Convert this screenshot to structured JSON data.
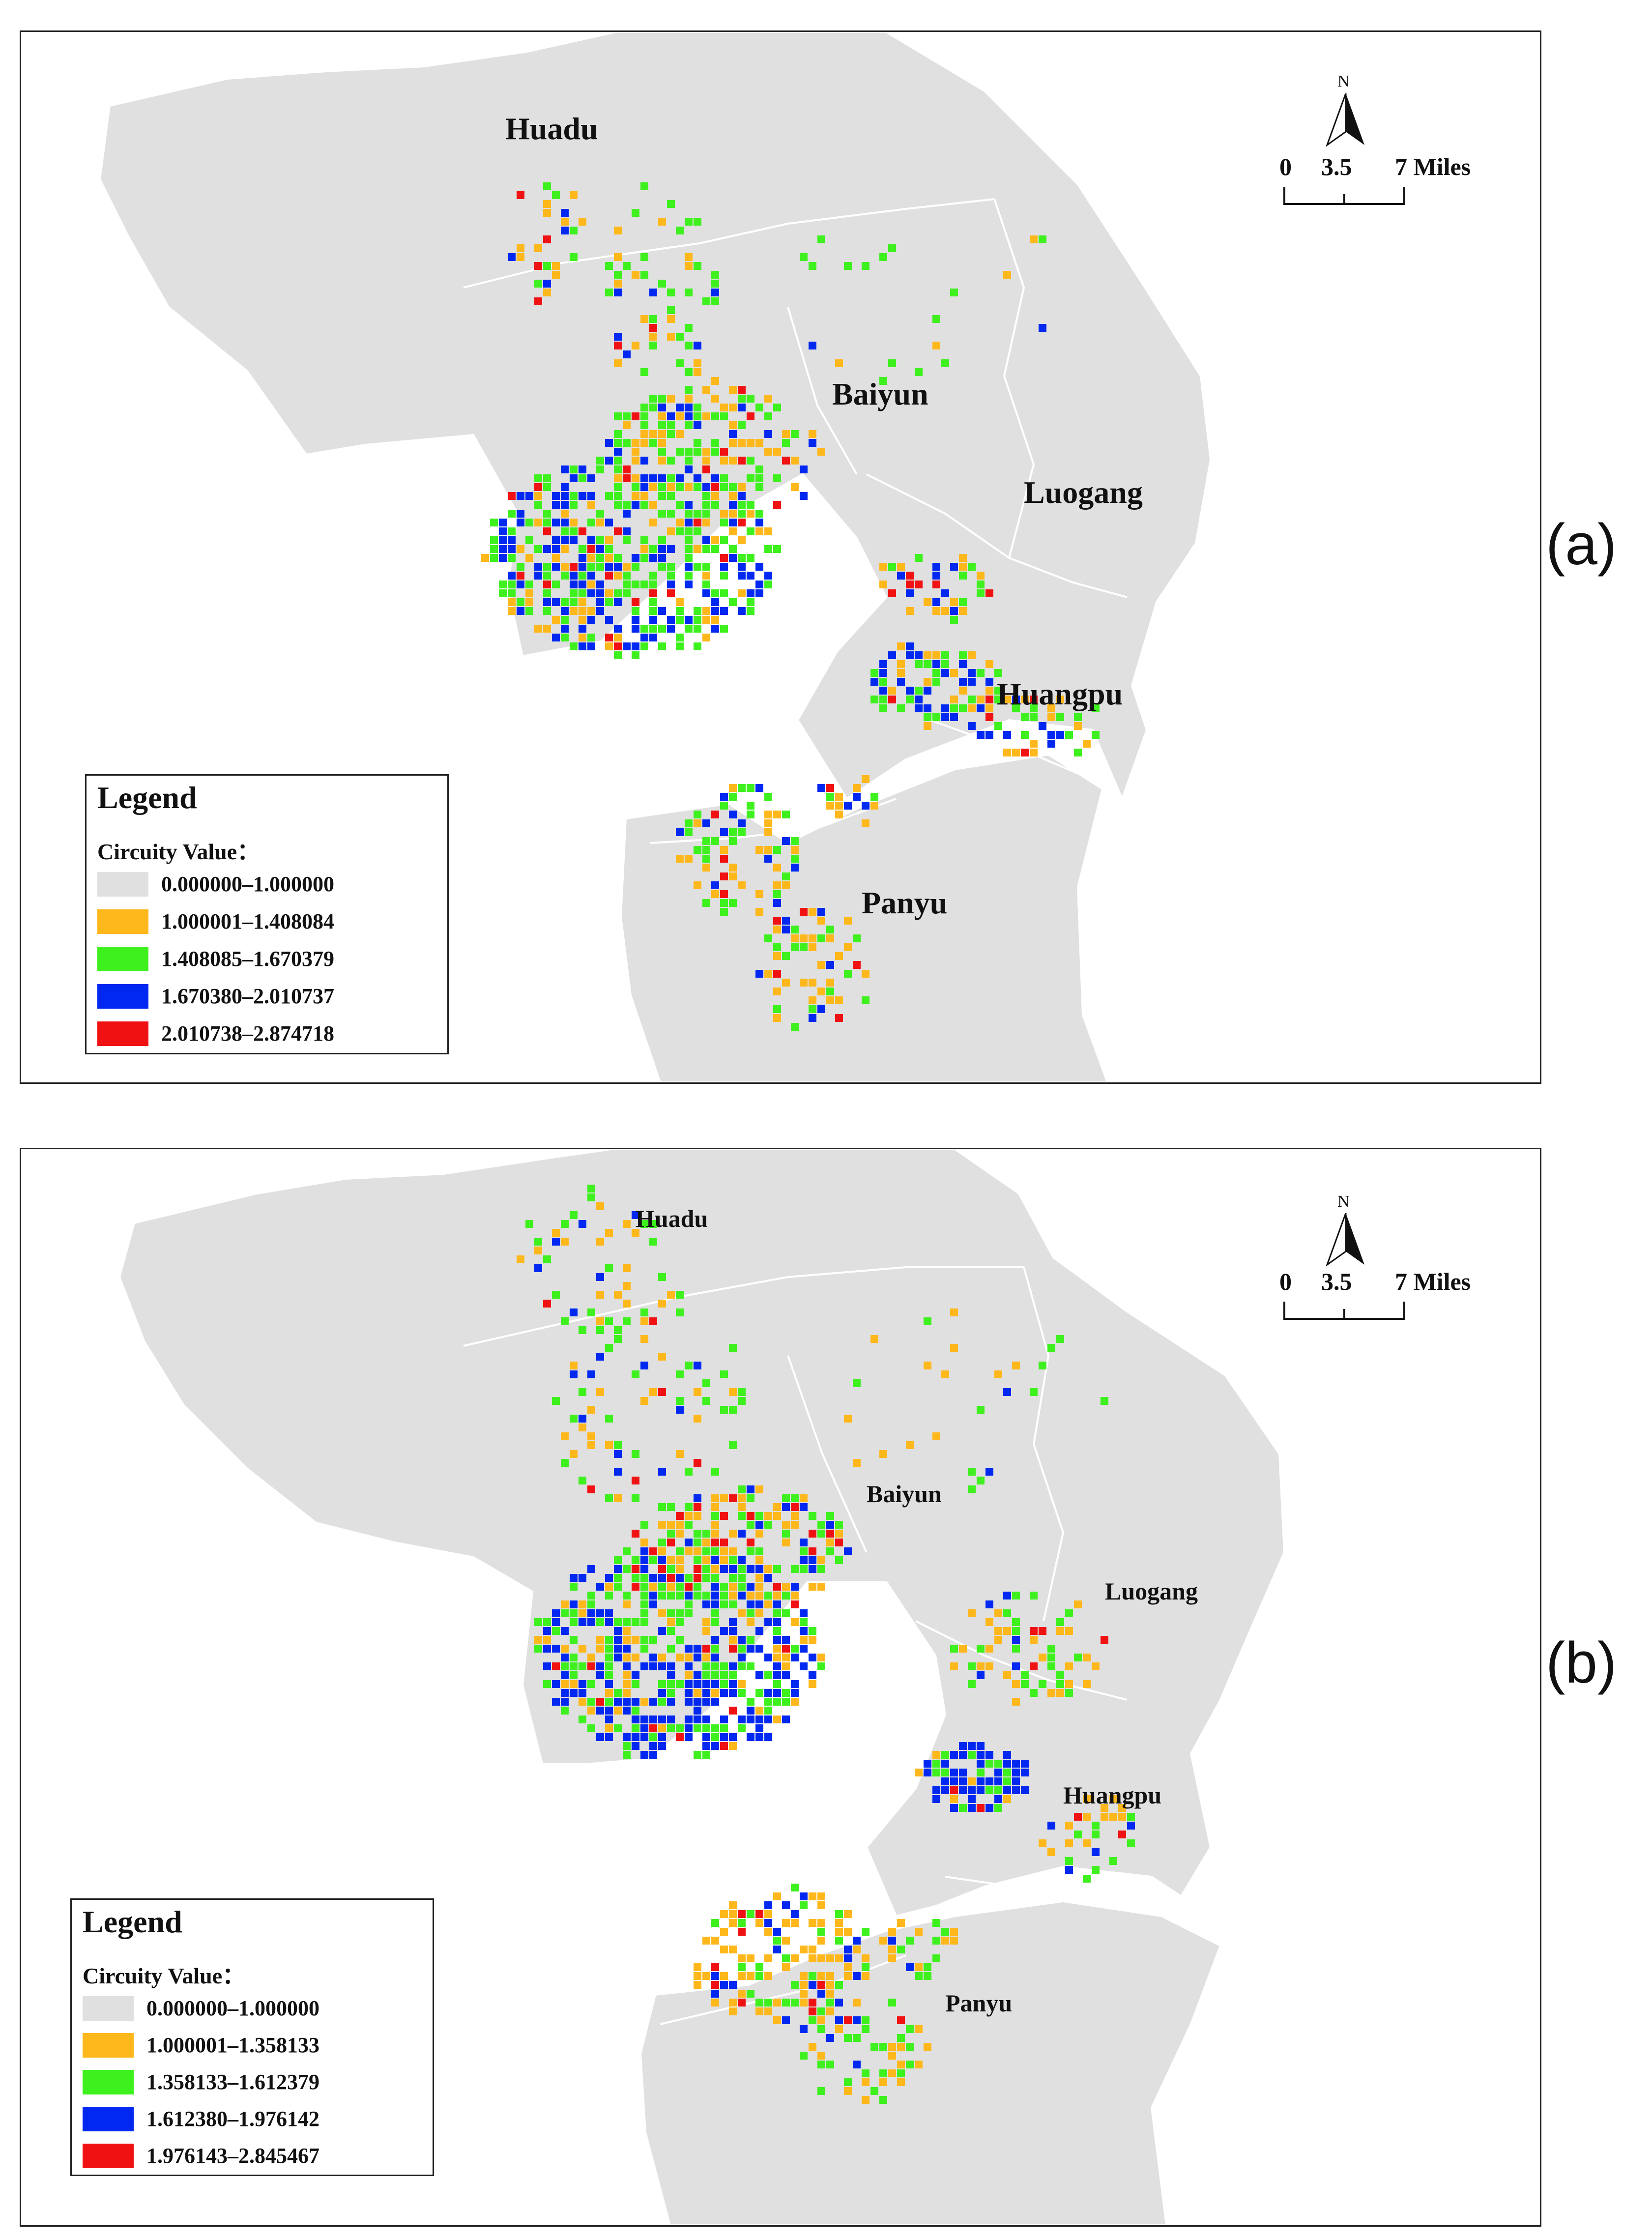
{
  "legend_colors": {
    "class0": "#e0e0e0",
    "class1": "#ffb81c",
    "class2": "#3ef01e",
    "class3": "#0028f0",
    "class4": "#f01212"
  },
  "map_background": "#e0e0e0",
  "panels": [
    {
      "id": "a",
      "label": "(a)",
      "districts": [
        "Huadu",
        "Baiyun",
        "Luogang",
        "Huangpu",
        "Panyu"
      ],
      "legend": {
        "title": "Legend",
        "subtitle": "Circuity Value：",
        "classes": [
          {
            "range": "0.000000–1.000000",
            "color": "#e0e0e0"
          },
          {
            "range": "1.000001–1.408084",
            "color": "#ffb81c"
          },
          {
            "range": "1.408085–1.670379",
            "color": "#3ef01e"
          },
          {
            "range": "1.670380–2.010737",
            "color": "#0028f0"
          },
          {
            "range": "2.010738–2.874718",
            "color": "#f01212"
          }
        ]
      },
      "north": "N",
      "scale_labels": [
        "0",
        "3.5",
        "7 Miles"
      ]
    },
    {
      "id": "b",
      "label": "(b)",
      "districts": [
        "Huadu",
        "Baiyun",
        "Luogang",
        "Huangpu",
        "Panyu"
      ],
      "legend": {
        "title": "Legend",
        "subtitle": "Circuity Value：",
        "classes": [
          {
            "range": "0.000000–1.000000",
            "color": "#e0e0e0"
          },
          {
            "range": "1.000001–1.358133",
            "color": "#ffb81c"
          },
          {
            "range": "1.358133–1.612379",
            "color": "#3ef01e"
          },
          {
            "range": "1.612380–1.976142",
            "color": "#0028f0"
          },
          {
            "range": "1.976143–2.845467",
            "color": "#f01212"
          }
        ]
      },
      "north": "N",
      "scale_labels": [
        "0",
        "3.5",
        "7 Miles"
      ]
    }
  ]
}
